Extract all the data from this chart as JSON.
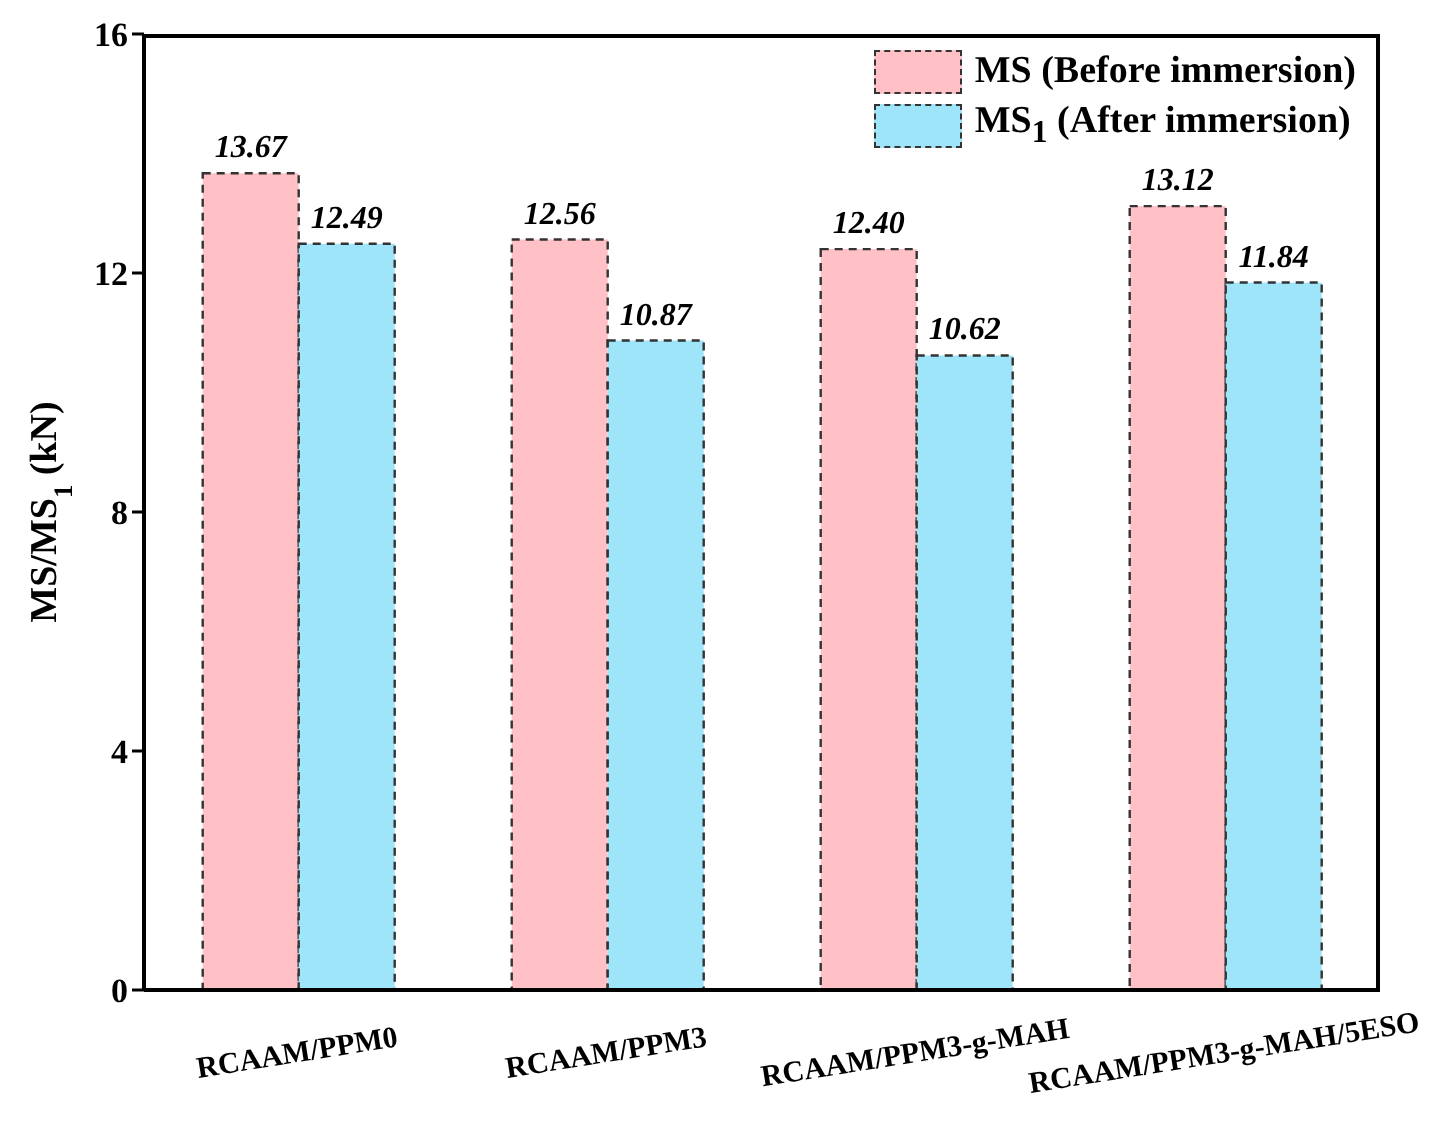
{
  "chart_data": {
    "type": "bar",
    "ylabel": "MS/MS$_{1}$ (kN)",
    "categories": [
      "RCAAM/PPM0",
      "RCAAM/PPM3",
      "RCAAM/PPM3-g-MAH",
      "RCAAM/PPM3-g-MAH/5ESO"
    ],
    "series": [
      {
        "name": "MS (Before immersion)",
        "color": "#ffc1c5",
        "values": [
          13.67,
          12.56,
          12.4,
          13.12
        ],
        "value_labels": [
          "13.67",
          "12.56",
          "12.40",
          "13.12"
        ]
      },
      {
        "name": "MS$_{1}$ (After immersion)",
        "color": "#9fe5fa",
        "values": [
          12.49,
          10.87,
          10.62,
          11.84
        ],
        "value_labels": [
          "12.49",
          "10.87",
          "10.62",
          "11.84"
        ]
      }
    ],
    "ylim": [
      0,
      16
    ],
    "yticks": [
      0,
      4,
      8,
      12,
      16
    ],
    "grid": false,
    "legend": "top right",
    "line_style": "dashed"
  }
}
